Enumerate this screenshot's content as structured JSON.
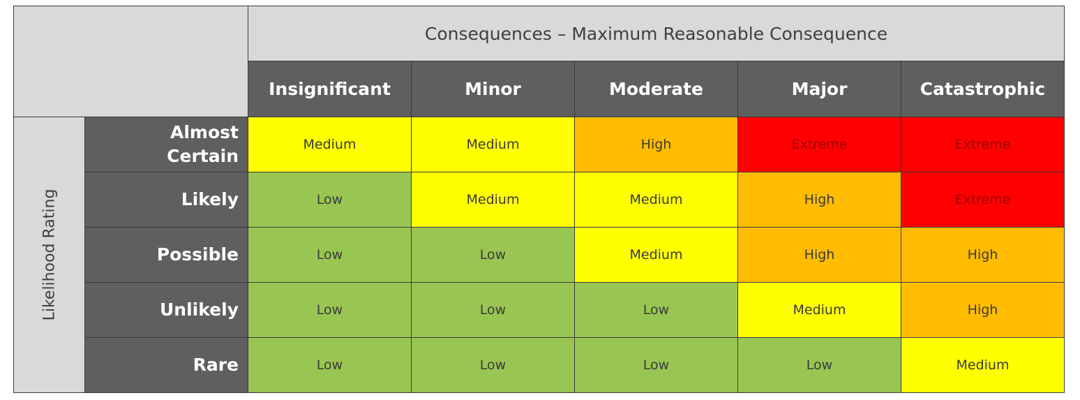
{
  "title": "Consequences – Maximum Reasonable Consequence",
  "likelihood_label": "Likelihood Rating",
  "consequences": [
    "Insignificant",
    "Minor",
    "Moderate",
    "Major",
    "Catastrophic"
  ],
  "levels": {
    "Low": "#99c652",
    "Medium": "#ffff00",
    "High": "#ffbc00",
    "Extreme": "#ff0000"
  },
  "rows": [
    {
      "label_line1": "Almost",
      "label_line2": "Certain",
      "cells": [
        "Medium",
        "Medium",
        "High",
        "Extreme",
        "Extreme"
      ]
    },
    {
      "label_line1": "Likely",
      "label_line2": "",
      "cells": [
        "Low",
        "Medium",
        "Medium",
        "High",
        "Extreme"
      ]
    },
    {
      "label_line1": "Possible",
      "label_line2": "",
      "cells": [
        "Low",
        "Low",
        "Medium",
        "High",
        "High"
      ]
    },
    {
      "label_line1": "Unlikely",
      "label_line2": "",
      "cells": [
        "Low",
        "Low",
        "Low",
        "Medium",
        "High"
      ]
    },
    {
      "label_line1": "Rare",
      "label_line2": "",
      "cells": [
        "Low",
        "Low",
        "Low",
        "Low",
        "Medium"
      ]
    }
  ]
}
